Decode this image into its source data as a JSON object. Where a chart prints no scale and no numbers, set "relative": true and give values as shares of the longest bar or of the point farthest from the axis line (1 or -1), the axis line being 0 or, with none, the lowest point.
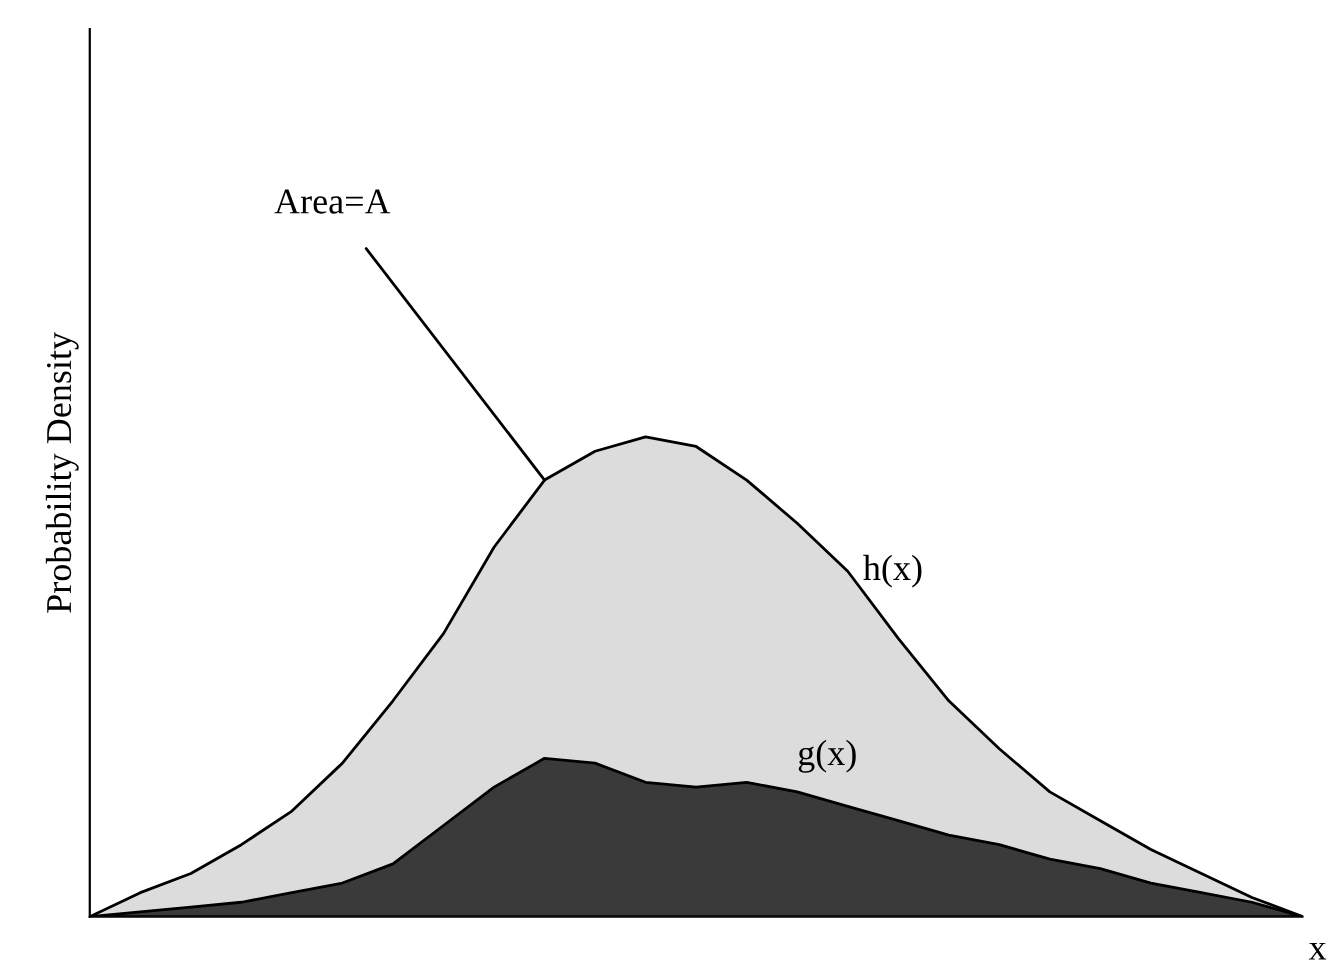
{
  "chart_data": {
    "type": "area",
    "relative": true,
    "xlabel": "x",
    "ylabel": "Probability Density",
    "categories": [
      null,
      null,
      null,
      null,
      null,
      null,
      null,
      null,
      null,
      null,
      null,
      null,
      null,
      null,
      null,
      null,
      null,
      null,
      null,
      null,
      null,
      null,
      null,
      null,
      null
    ],
    "series": [
      {
        "name": "h(x)",
        "color": "#dcdcdc",
        "values": [
          0,
          0.05,
          0.09,
          0.15,
          0.22,
          0.32,
          0.45,
          0.59,
          0.77,
          0.91,
          0.97,
          1.0,
          0.98,
          0.91,
          0.82,
          0.72,
          0.58,
          0.45,
          0.35,
          0.26,
          0.2,
          0.14,
          0.09,
          0.04,
          0
        ]
      },
      {
        "name": "g(x)",
        "color": "#3a3a3a",
        "values": [
          0,
          0.01,
          0.02,
          0.03,
          0.05,
          0.07,
          0.11,
          0.19,
          0.27,
          0.33,
          0.32,
          0.28,
          0.27,
          0.28,
          0.26,
          0.23,
          0.2,
          0.17,
          0.15,
          0.12,
          0.1,
          0.07,
          0.05,
          0.03,
          0
        ]
      }
    ],
    "annotations": [
      "Area=A"
    ],
    "legend": false,
    "grid": false
  }
}
